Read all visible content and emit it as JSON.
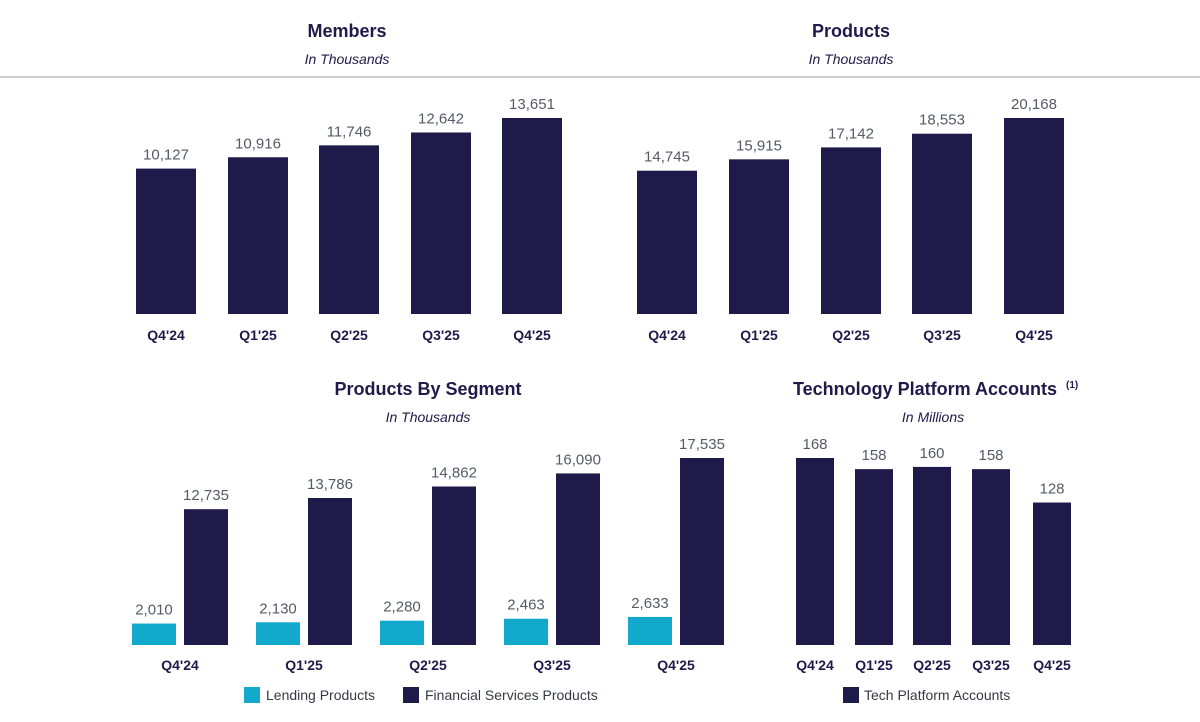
{
  "colors": {
    "navy": "#1e1a4a",
    "teal": "#12a9cd",
    "value_text": "#555a66",
    "divider": "#9a9a9a"
  },
  "chart_data": [
    {
      "type": "bar",
      "title": "Members",
      "subtitle": "In Thousands",
      "categories": [
        "Q4'24",
        "Q1'25",
        "Q2'25",
        "Q3'25",
        "Q4'25"
      ],
      "series": [
        {
          "values": [
            10127,
            10916,
            11746,
            12642,
            13651
          ],
          "labels": [
            "10,127",
            "10,916",
            "11,746",
            "12,642",
            "13,651"
          ]
        }
      ],
      "grid": false
    },
    {
      "type": "bar",
      "title": "Products",
      "subtitle": "In Thousands",
      "categories": [
        "Q4'24",
        "Q1'25",
        "Q2'25",
        "Q3'25",
        "Q4'25"
      ],
      "series": [
        {
          "values": [
            14745,
            15915,
            17142,
            18553,
            20168
          ],
          "labels": [
            "14,745",
            "15,915",
            "17,142",
            "18,553",
            "20,168"
          ]
        }
      ],
      "grid": false
    },
    {
      "type": "bar",
      "title": "Products By Segment",
      "subtitle": "In Thousands",
      "categories": [
        "Q4'24",
        "Q1'25",
        "Q2'25",
        "Q3'25",
        "Q4'25"
      ],
      "series": [
        {
          "name": "Lending Products",
          "color": "#12a9cd",
          "values": [
            2010,
            2130,
            2280,
            2463,
            2633
          ],
          "labels": [
            "2,010",
            "2,130",
            "2,280",
            "2,463",
            "2,633"
          ]
        },
        {
          "name": "Financial Services Products",
          "color": "#1e1a4a",
          "values": [
            12735,
            13786,
            14862,
            16090,
            17535
          ],
          "labels": [
            "12,735",
            "13,786",
            "14,862",
            "16,090",
            "17,535"
          ]
        }
      ],
      "legend": "bottom",
      "grid": false
    },
    {
      "type": "bar",
      "title": "Technology Platform Accounts",
      "title_superscript": "(1)",
      "subtitle": "In Millions",
      "categories": [
        "Q4'24",
        "Q1'25",
        "Q2'25",
        "Q3'25",
        "Q4'25"
      ],
      "series": [
        {
          "name": "Tech Platform Accounts",
          "color": "#1e1a4a",
          "values": [
            168,
            158,
            160,
            158,
            128
          ],
          "labels": [
            "168",
            "158",
            "160",
            "158",
            "128"
          ]
        }
      ],
      "legend": "bottom",
      "grid": false
    }
  ]
}
